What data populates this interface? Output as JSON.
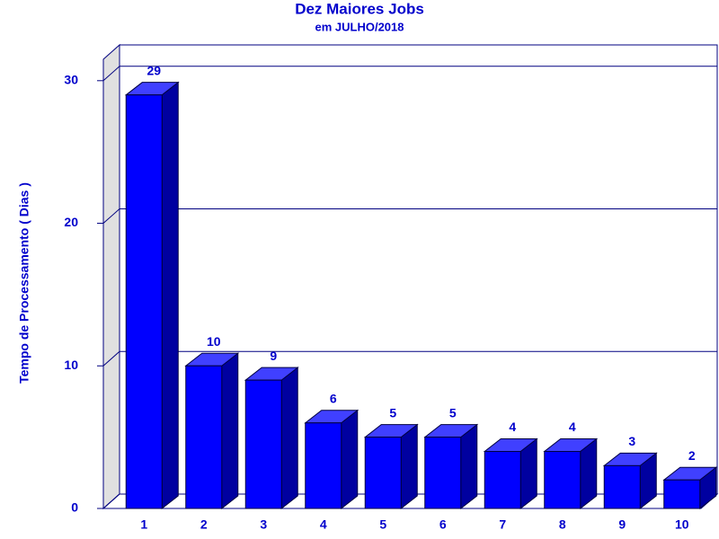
{
  "chart_data": {
    "type": "bar3d",
    "title": "Dez Maiores Jobs",
    "subtitle": "em JULHO/2018",
    "y_label": "Tempo de Processamento ( Dias )",
    "categories": [
      "1",
      "2",
      "3",
      "4",
      "5",
      "6",
      "7",
      "8",
      "9",
      "10"
    ],
    "values": [
      29,
      10,
      9,
      6,
      5,
      5,
      4,
      4,
      3,
      2
    ],
    "color": "#0000ff",
    "ylim": [
      0,
      31.5
    ],
    "yticks": [
      0,
      10,
      20,
      30
    ],
    "grid": true
  }
}
